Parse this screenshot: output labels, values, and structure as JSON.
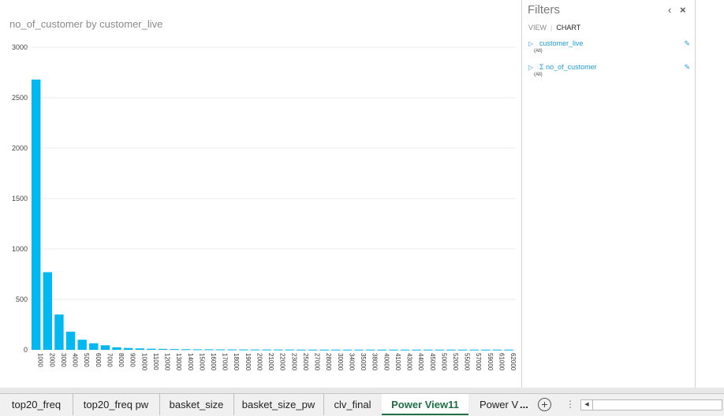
{
  "chart_data": {
    "type": "bar",
    "title": "no_of_customer by customer_live",
    "xlabel": "",
    "ylabel": "",
    "ylim": [
      0,
      3000
    ],
    "yticks": [
      0,
      500,
      1000,
      1500,
      2000,
      2500,
      3000
    ],
    "grid": true,
    "categories": [
      "1000",
      "2000",
      "3000",
      "4000",
      "5000",
      "6000",
      "7000",
      "8000",
      "9000",
      "10000",
      "11000",
      "12000",
      "13000",
      "14000",
      "15000",
      "16000",
      "17000",
      "18000",
      "19000",
      "20000",
      "21000",
      "22000",
      "23000",
      "25000",
      "27000",
      "28000",
      "30000",
      "34000",
      "35000",
      "38000",
      "40000",
      "41000",
      "43000",
      "44000",
      "45000",
      "50000",
      "52000",
      "55000",
      "57000",
      "59000",
      "61000",
      "62000"
    ],
    "values": [
      2680,
      770,
      350,
      180,
      100,
      65,
      45,
      25,
      18,
      14,
      11,
      9,
      7,
      6,
      5,
      5,
      4,
      4,
      3,
      3,
      3,
      3,
      3,
      2,
      2,
      2,
      2,
      2,
      2,
      2,
      2,
      2,
      2,
      2,
      2,
      2,
      2,
      2,
      2,
      2,
      2,
      2
    ],
    "color": "#01B8F0"
  },
  "filters": {
    "title": "Filters",
    "tabs": {
      "view": "VIEW",
      "chart": "CHART"
    },
    "items": [
      {
        "name": "customer_live",
        "value": "(All)",
        "sigma": false
      },
      {
        "name": "no_of_customer",
        "value": "(All)",
        "sigma": true
      }
    ],
    "sigma_symbol": "Σ"
  },
  "sheet_tabs": [
    {
      "label": "top20_freq",
      "active": false
    },
    {
      "label": "top20_freq pw",
      "active": false
    },
    {
      "label": "basket_size",
      "active": false
    },
    {
      "label": "basket_size_pw",
      "active": false
    },
    {
      "label": "clv_final",
      "active": false
    },
    {
      "label": "Power View11",
      "active": true
    },
    {
      "label": "Power V",
      "active": false
    }
  ],
  "sheet_more": "...",
  "add_sheet_symbol": "+",
  "grip_symbol": "⋮",
  "accent_color": "#1E7145",
  "link_color": "#1F9BD6"
}
